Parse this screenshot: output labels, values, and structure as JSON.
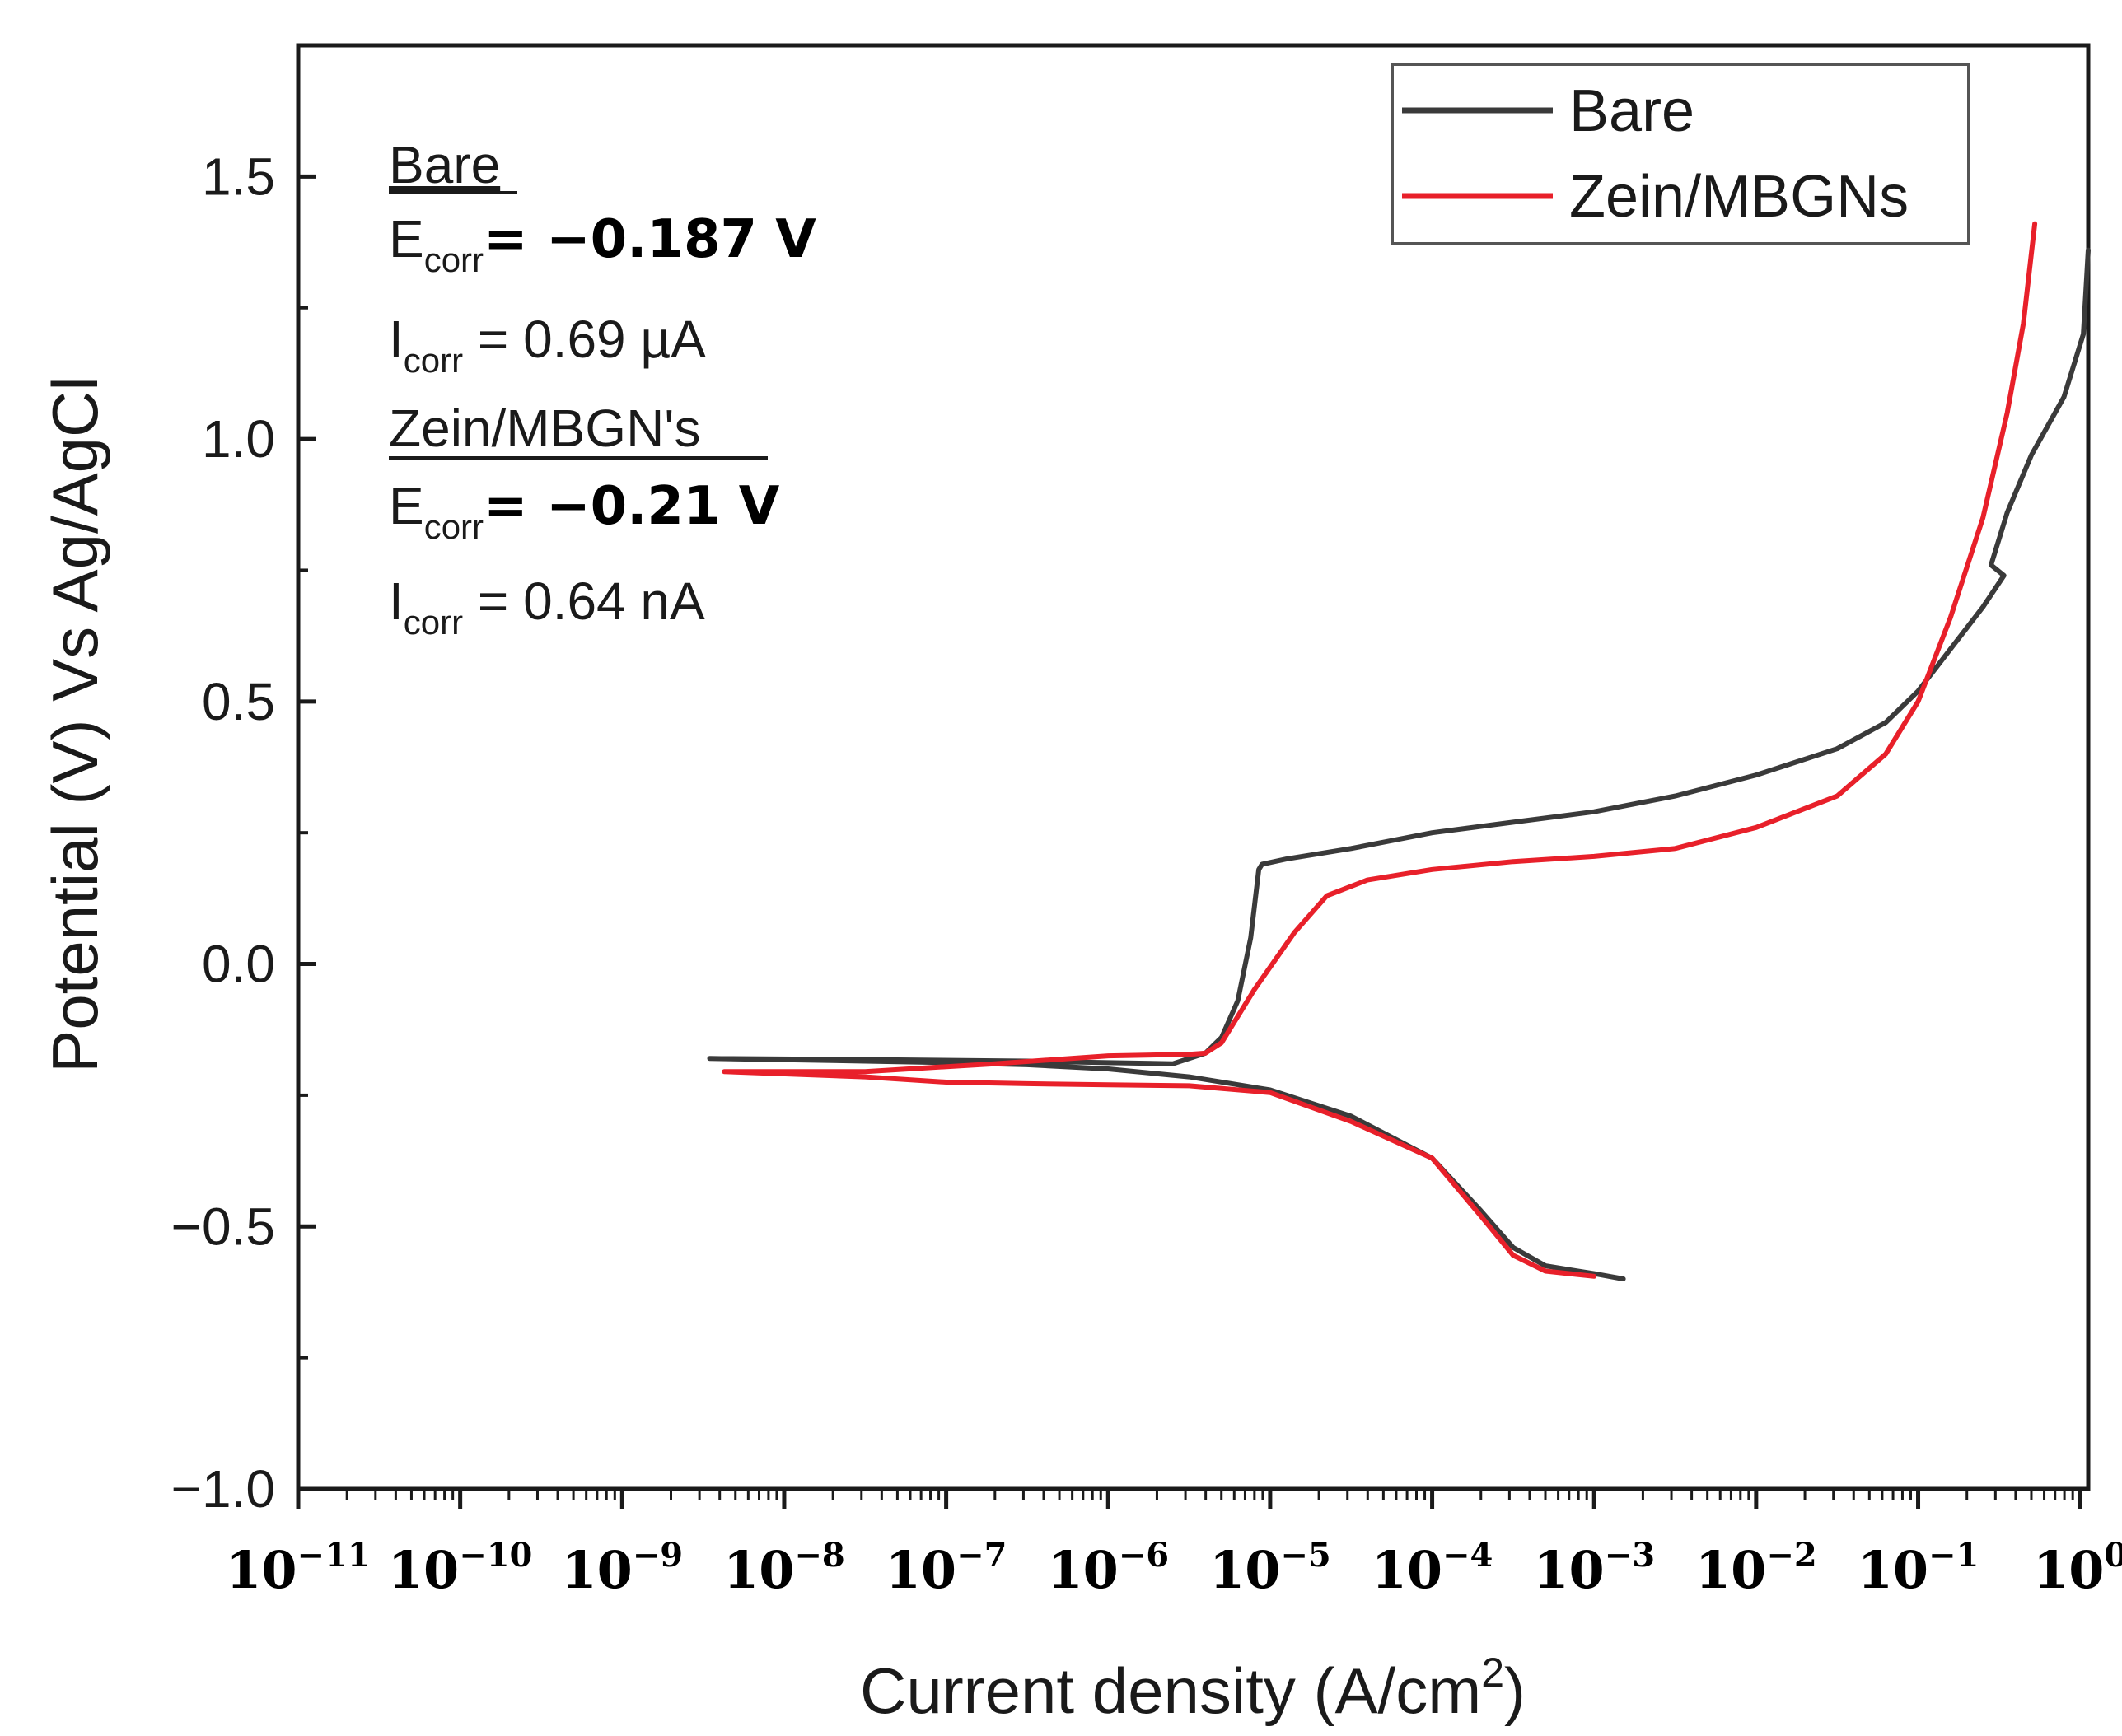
{
  "chart_data": {
    "type": "line",
    "title": "",
    "xlabel": "Current density (A/cm",
    "xlabel_sup": "2",
    "xlabel_end": ")",
    "ylabel": "Potential (V) Vs Ag/AgCl",
    "xscale": "log",
    "xlim_exp": [
      -11,
      0.05
    ],
    "ylim": [
      -1.0,
      1.75
    ],
    "yticks": [
      {
        "value": -1.0,
        "label": "−1.0"
      },
      {
        "value": -0.5,
        "label": "−0.5"
      },
      {
        "value": 0.0,
        "label": "0.0"
      },
      {
        "value": 0.5,
        "label": "0.5"
      },
      {
        "value": 1.0,
        "label": "1.0"
      },
      {
        "value": 1.5,
        "label": "1.5"
      }
    ],
    "xticks": [
      {
        "exp": -11,
        "base": "10",
        "sup": "−11"
      },
      {
        "exp": -10,
        "base": "10",
        "sup": "−10"
      },
      {
        "exp": -9,
        "base": "10",
        "sup": "−9"
      },
      {
        "exp": -8,
        "base": "10",
        "sup": "−8"
      },
      {
        "exp": -7,
        "base": "10",
        "sup": "−7"
      },
      {
        "exp": -6,
        "base": "10",
        "sup": "−6"
      },
      {
        "exp": -5,
        "base": "10",
        "sup": "−5"
      },
      {
        "exp": -4,
        "base": "10",
        "sup": "−4"
      },
      {
        "exp": -3,
        "base": "10",
        "sup": "−3"
      },
      {
        "exp": -2,
        "base": "10",
        "sup": "−2"
      },
      {
        "exp": -1,
        "base": "10",
        "sup": "−1"
      },
      {
        "exp": 0,
        "base": "10",
        "sup": "0"
      }
    ],
    "legend": {
      "position": "top-right"
    },
    "series": [
      {
        "name": "Bare",
        "color": "#3a3a3a",
        "points": [
          [
            -8.46,
            -0.18
          ],
          [
            -7.5,
            -0.182
          ],
          [
            -6.5,
            -0.185
          ],
          [
            -6.0,
            -0.188
          ],
          [
            -5.6,
            -0.19
          ],
          [
            -5.4,
            -0.17
          ],
          [
            -5.3,
            -0.14
          ],
          [
            -5.2,
            -0.07
          ],
          [
            -5.12,
            0.05
          ],
          [
            -5.07,
            0.18
          ],
          [
            -5.05,
            0.19
          ],
          [
            -4.9,
            0.2
          ],
          [
            -4.5,
            0.22
          ],
          [
            -4.0,
            0.25
          ],
          [
            -3.5,
            0.27
          ],
          [
            -3.0,
            0.29
          ],
          [
            -2.5,
            0.32
          ],
          [
            -2.0,
            0.36
          ],
          [
            -1.5,
            0.41
          ],
          [
            -1.2,
            0.46
          ],
          [
            -1.0,
            0.52
          ],
          [
            -0.8,
            0.6
          ],
          [
            -0.6,
            0.68
          ],
          [
            -0.47,
            0.74
          ],
          [
            -0.55,
            0.76
          ],
          [
            -0.45,
            0.86
          ],
          [
            -0.3,
            0.97
          ],
          [
            -0.1,
            1.08
          ],
          [
            0.02,
            1.2
          ],
          [
            0.05,
            1.36
          ],
          null,
          [
            -8.46,
            -0.18
          ],
          [
            -7.5,
            -0.185
          ],
          [
            -7.0,
            -0.188
          ],
          [
            -6.5,
            -0.192
          ],
          [
            -6.0,
            -0.2
          ],
          [
            -5.5,
            -0.215
          ],
          [
            -5.0,
            -0.24
          ],
          [
            -4.5,
            -0.29
          ],
          [
            -4.0,
            -0.37
          ],
          [
            -3.7,
            -0.47
          ],
          [
            -3.5,
            -0.54
          ],
          [
            -3.3,
            -0.575
          ],
          [
            -3.0,
            -0.59
          ],
          [
            -2.82,
            -0.6
          ]
        ]
      },
      {
        "name": "Zein/MBGNs",
        "color": "#e8202a",
        "points": [
          [
            -8.37,
            -0.205
          ],
          [
            -7.5,
            -0.205
          ],
          [
            -6.7,
            -0.19
          ],
          [
            -6.0,
            -0.175
          ],
          [
            -5.5,
            -0.172
          ],
          [
            -5.4,
            -0.17
          ],
          [
            -5.3,
            -0.15
          ],
          [
            -5.1,
            -0.05
          ],
          [
            -4.85,
            0.06
          ],
          [
            -4.65,
            0.13
          ],
          [
            -4.4,
            0.16
          ],
          [
            -4.0,
            0.18
          ],
          [
            -3.5,
            0.195
          ],
          [
            -3.0,
            0.205
          ],
          [
            -2.5,
            0.22
          ],
          [
            -2.0,
            0.26
          ],
          [
            -1.5,
            0.32
          ],
          [
            -1.2,
            0.4
          ],
          [
            -1.0,
            0.5
          ],
          [
            -0.8,
            0.66
          ],
          [
            -0.6,
            0.85
          ],
          [
            -0.45,
            1.05
          ],
          [
            -0.35,
            1.22
          ],
          [
            -0.28,
            1.41
          ],
          null,
          [
            -8.37,
            -0.205
          ],
          [
            -7.5,
            -0.215
          ],
          [
            -7.0,
            -0.225
          ],
          [
            -6.5,
            -0.228
          ],
          [
            -6.0,
            -0.23
          ],
          [
            -5.5,
            -0.232
          ],
          [
            -5.0,
            -0.245
          ],
          [
            -4.5,
            -0.3
          ],
          [
            -4.0,
            -0.37
          ],
          [
            -3.7,
            -0.48
          ],
          [
            -3.5,
            -0.555
          ],
          [
            -3.3,
            -0.585
          ],
          [
            -3.0,
            -0.595
          ]
        ]
      }
    ],
    "annotations": {
      "bare_head": "Bare",
      "bare_e_label": "E",
      "bare_e_sub": "corr",
      "bare_e_value": "= −0.187 V",
      "bare_i_label": "I",
      "bare_i_sub": "corr",
      "bare_i_value": " = 0.69 µA",
      "zein_head": "Zein/MBGN's",
      "zein_e_label": "E",
      "zein_e_sub": "corr",
      "zein_e_value": "=  −0.21 V",
      "zein_i_label": "I",
      "zein_i_sub": "corr",
      "zein_i_value": " = 0.64 nA"
    }
  }
}
